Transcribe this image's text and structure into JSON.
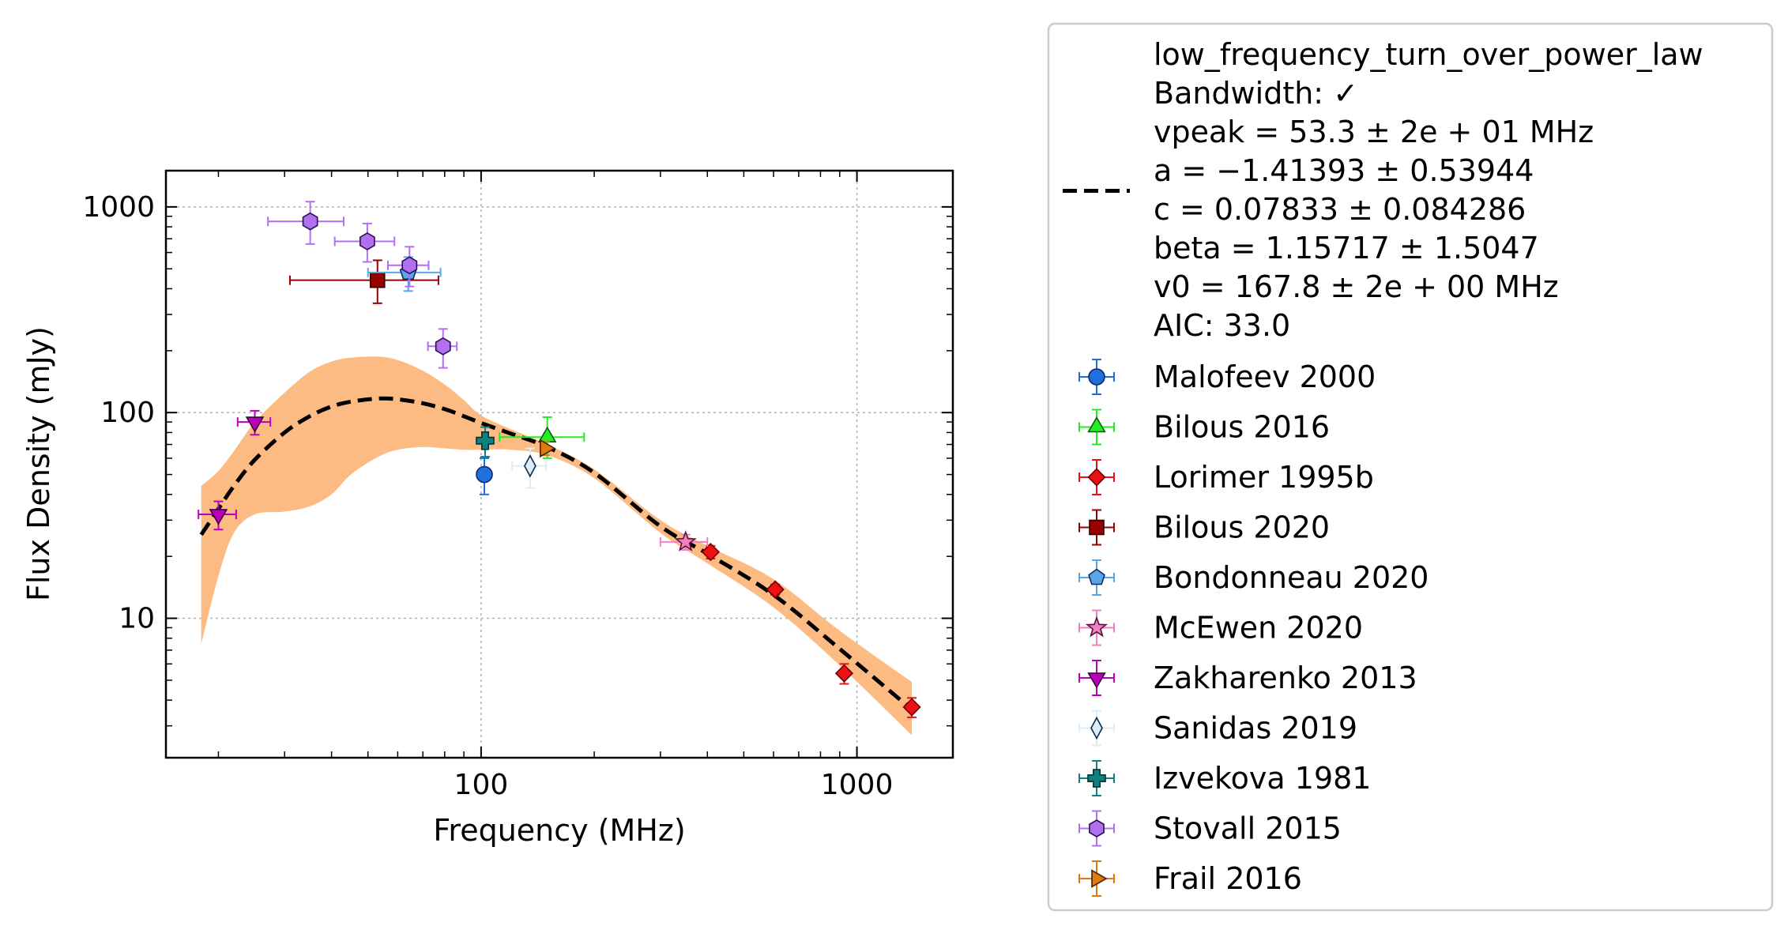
{
  "chart_data": {
    "type": "scatter",
    "title": "",
    "xlabel": "Frequency (MHz)",
    "ylabel": "Flux Density (mJy)",
    "xscale": "log",
    "yscale": "log",
    "xlim": [
      14.5,
      1800
    ],
    "ylim": [
      2.1,
      1500
    ],
    "xticks": [
      {
        "value": 100,
        "label": "100"
      },
      {
        "value": 1000,
        "label": "1000"
      }
    ],
    "yticks": [
      {
        "value": 10,
        "label": "10"
      },
      {
        "value": 100,
        "label": "100"
      },
      {
        "value": 1000,
        "label": "1000"
      }
    ],
    "grid": true,
    "legend_position": "outside-right",
    "model": {
      "name": "low_frequency_turn_over_power_law",
      "info_lines": [
        "low_frequency_turn_over_power_law",
        "Bandwidth: ✓",
        "vpeak = 53.3 ± 2e + 01 MHz",
        "a = −1.41393 ± 0.53944",
        "c = 0.07833 ± 0.084286",
        "beta = 1.15717 ± 1.5047",
        "v0 = 167.8 ± 2e + 00 MHz",
        "AIC: 33.0"
      ],
      "curve_x": [
        18,
        20,
        22,
        25,
        30,
        35,
        40,
        45,
        53.3,
        60,
        70,
        80,
        90,
        100,
        120,
        150,
        200,
        300,
        400,
        600,
        900,
        1400
      ],
      "curve_y": [
        25.5,
        34,
        44,
        59,
        80,
        96,
        107,
        113,
        117,
        116,
        111,
        104,
        96,
        89,
        79,
        68,
        51,
        28,
        20.6,
        13,
        7.1,
        3.6
      ],
      "band_upper": [
        44,
        52,
        65,
        90,
        125,
        158,
        177,
        185,
        187,
        180,
        160,
        137,
        115,
        97,
        83,
        70,
        53,
        30,
        22.5,
        15.5,
        8.7,
        4.9
      ],
      "band_lower": [
        7.5,
        16,
        26,
        32,
        33,
        35,
        40,
        50,
        61,
        66,
        68,
        67,
        66,
        66,
        66,
        62,
        48,
        26,
        18.5,
        11.3,
        5.9,
        2.7
      ],
      "curve_color": "#000000",
      "band_color": "#fdbb84"
    },
    "series": [
      {
        "name": "Malofeev 2000",
        "marker": "circle",
        "color": "#1f6fdc",
        "edge": "#0a2a6a",
        "points": [
          {
            "x": 102,
            "y": 50,
            "xerr": [
              0,
              0
            ],
            "yerr": [
              10,
              10
            ]
          }
        ]
      },
      {
        "name": "Bilous 2016",
        "marker": "triangle-up",
        "color": "#22ee22",
        "edge": "#0b5a0b",
        "points": [
          {
            "x": 150,
            "y": 76,
            "xerr": [
              38,
              38
            ],
            "yerr": [
              16,
              19
            ]
          }
        ]
      },
      {
        "name": "Lorimer 1995b",
        "marker": "diamond",
        "color": "#ee1111",
        "edge": "#6a0000",
        "points": [
          {
            "x": 408,
            "y": 21,
            "xerr": [
              0,
              0
            ],
            "yerr": [
              1.5,
              1.5
            ]
          },
          {
            "x": 606,
            "y": 13.8,
            "xerr": [
              0,
              0
            ],
            "yerr": [
              0.8,
              0.8
            ]
          },
          {
            "x": 925,
            "y": 5.4,
            "xerr": [
              0,
              0
            ],
            "yerr": [
              0.6,
              0.6
            ]
          },
          {
            "x": 1400,
            "y": 3.7,
            "xerr": [
              0,
              0
            ],
            "yerr": [
              0.4,
              0.4
            ]
          }
        ]
      },
      {
        "name": "Bilous 2020",
        "marker": "square",
        "color": "#990000",
        "edge": "#330000",
        "points": [
          {
            "x": 53,
            "y": 440,
            "xerr": [
              22,
              24
            ],
            "yerr": [
              100,
              110
            ]
          }
        ]
      },
      {
        "name": "Bondonneau 2020",
        "marker": "pentagon",
        "color": "#5aa5e6",
        "edge": "#0a2a6a",
        "points": [
          {
            "x": 64,
            "y": 480,
            "xerr": [
              14,
              14
            ],
            "yerr": [
              90,
              90
            ]
          }
        ]
      },
      {
        "name": "McEwen 2020",
        "marker": "star",
        "color": "#f080c0",
        "edge": "#5a1040",
        "points": [
          {
            "x": 350,
            "y": 23.5,
            "xerr": [
              50,
              50
            ],
            "yerr": [
              2,
              2
            ]
          }
        ]
      },
      {
        "name": "Zakharenko 2013",
        "marker": "triangle-down",
        "color": "#bb00bb",
        "edge": "#3a003a",
        "points": [
          {
            "x": 20,
            "y": 32,
            "xerr": [
              2.3,
              2.3
            ],
            "yerr": [
              5,
              5
            ]
          },
          {
            "x": 25,
            "y": 90,
            "xerr": [
              2.5,
              2.5
            ],
            "yerr": [
              12,
              12
            ]
          }
        ]
      },
      {
        "name": "Sanidas 2019",
        "marker": "thin-diamond",
        "color": "#dcecf8",
        "edge": "#0a2a4a",
        "points": [
          {
            "x": 135,
            "y": 55,
            "xerr": [
              14,
              14
            ],
            "yerr": [
              12,
              12
            ]
          }
        ]
      },
      {
        "name": "Izvekova 1981",
        "marker": "plus",
        "color": "#108080",
        "edge": "#053030",
        "points": [
          {
            "x": 102.5,
            "y": 73,
            "xerr": [
              0,
              0
            ],
            "yerr": [
              12,
              12
            ]
          }
        ]
      },
      {
        "name": "Stovall 2015",
        "marker": "hexagon",
        "color": "#b070f0",
        "edge": "#2a1050",
        "points": [
          {
            "x": 35.1,
            "y": 850,
            "xerr": [
              8,
              8
            ],
            "yerr": [
              190,
              210
            ]
          },
          {
            "x": 49.8,
            "y": 680,
            "xerr": [
              9,
              9
            ],
            "yerr": [
              140,
              150
            ]
          },
          {
            "x": 64.5,
            "y": 520,
            "xerr": [
              8,
              8
            ],
            "yerr": [
              110,
              120
            ]
          },
          {
            "x": 79.2,
            "y": 210,
            "xerr": [
              7,
              7
            ],
            "yerr": [
              45,
              45
            ]
          }
        ]
      },
      {
        "name": "Frail 2016",
        "marker": "triangle-right",
        "color": "#e07a10",
        "edge": "#4a2000",
        "points": [
          {
            "x": 148,
            "y": 67,
            "xerr": [
              0,
              0
            ],
            "yerr": [
              5,
              5
            ]
          }
        ]
      }
    ]
  }
}
